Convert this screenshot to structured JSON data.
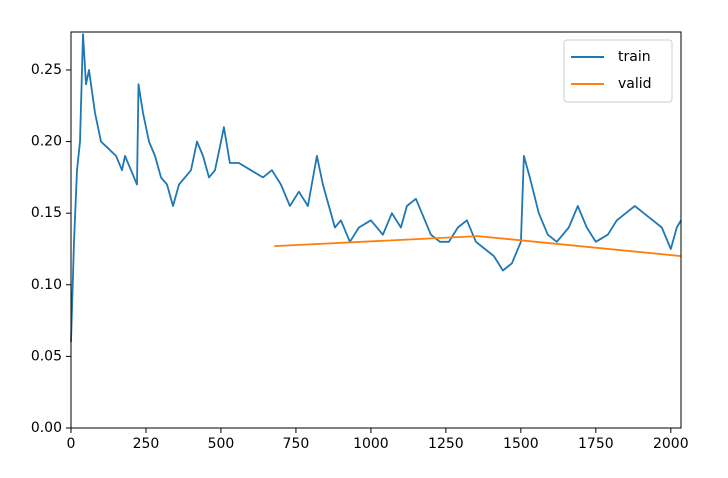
{
  "chart_data": {
    "type": "line",
    "series": [
      {
        "name": "train",
        "color": "#1f77b4",
        "x": [
          0,
          10,
          20,
          30,
          40,
          50,
          60,
          80,
          100,
          125,
          150,
          170,
          180,
          200,
          220,
          225,
          240,
          260,
          280,
          300,
          320,
          340,
          360,
          380,
          400,
          420,
          440,
          460,
          480,
          500,
          510,
          530,
          560,
          600,
          640,
          670,
          700,
          730,
          760,
          790,
          820,
          840,
          860,
          880,
          900,
          930,
          960,
          1000,
          1040,
          1070,
          1100,
          1120,
          1150,
          1180,
          1200,
          1230,
          1260,
          1290,
          1320,
          1350,
          1380,
          1410,
          1440,
          1470,
          1500,
          1510,
          1530,
          1560,
          1590,
          1620,
          1660,
          1690,
          1720,
          1750,
          1790,
          1820,
          1850,
          1880,
          1910,
          1940,
          1970,
          2000,
          2020,
          2034
        ],
        "values": [
          0.06,
          0.13,
          0.18,
          0.2,
          0.275,
          0.24,
          0.25,
          0.22,
          0.2,
          0.195,
          0.19,
          0.18,
          0.19,
          0.18,
          0.17,
          0.24,
          0.22,
          0.2,
          0.19,
          0.175,
          0.17,
          0.155,
          0.17,
          0.175,
          0.18,
          0.2,
          0.19,
          0.175,
          0.18,
          0.2,
          0.21,
          0.185,
          0.185,
          0.18,
          0.175,
          0.18,
          0.17,
          0.155,
          0.165,
          0.155,
          0.19,
          0.17,
          0.155,
          0.14,
          0.145,
          0.13,
          0.14,
          0.145,
          0.135,
          0.15,
          0.14,
          0.155,
          0.16,
          0.145,
          0.135,
          0.13,
          0.13,
          0.14,
          0.145,
          0.13,
          0.125,
          0.12,
          0.11,
          0.115,
          0.13,
          0.19,
          0.175,
          0.15,
          0.135,
          0.13,
          0.14,
          0.155,
          0.14,
          0.13,
          0.135,
          0.145,
          0.15,
          0.155,
          0.15,
          0.145,
          0.14,
          0.125,
          0.14,
          0.145
        ]
      },
      {
        "name": "valid",
        "color": "#ff7f0e",
        "x": [
          678,
          1356,
          2034
        ],
        "values": [
          0.127,
          0.134,
          0.12
        ]
      }
    ],
    "xlim": [
      0,
      2034
    ],
    "ylim": [
      0,
      0.2765
    ],
    "xticks": [
      0,
      250,
      500,
      750,
      1000,
      1250,
      1500,
      1750,
      2000
    ],
    "yticks": [
      {
        "value": 0,
        "label": "0.00"
      },
      0.05,
      {
        "value": 0.1,
        "label": "0.10"
      },
      0.15,
      {
        "value": 0.2,
        "label": "0.20"
      },
      0.25
    ],
    "legend": "upper right"
  }
}
